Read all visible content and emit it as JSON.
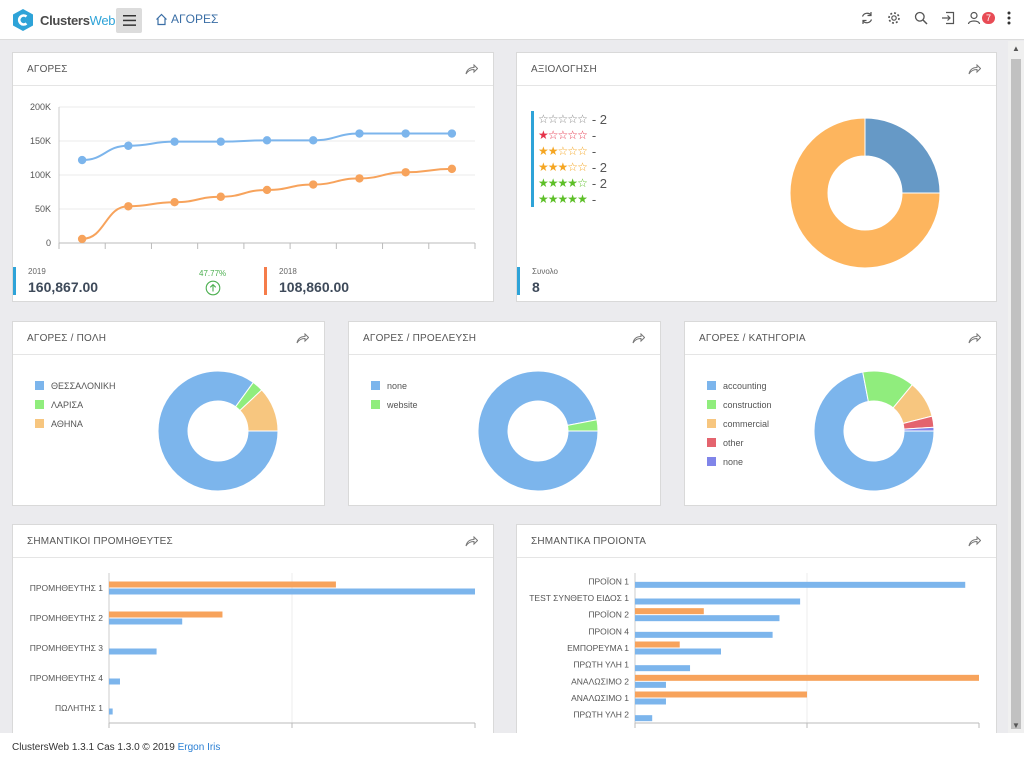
{
  "app": {
    "logo_name": "Clusters",
    "logo_suffix": "Web",
    "breadcrumb": "ΑΓΟΡΕΣ",
    "notification_count": "7"
  },
  "panels": {
    "sales": {
      "title": "ΑΓΟΡΕΣ"
    },
    "rating": {
      "title": "ΑΞΙΟΛΟΓΗΣΗ"
    },
    "city": {
      "title": "ΑΓΟΡΕΣ / ΠΟΛΗ"
    },
    "origin": {
      "title": "ΑΓΟΡΕΣ / ΠΡΟΕΛΕΥΣΗ"
    },
    "category": {
      "title": "ΑΓΟΡΕΣ / ΚΑΤΗΓΟΡΙΑ"
    },
    "suppliers": {
      "title": "ΣΗΜΑΝΤΙΚΟΙ ΠΡΟΜΗΘΕΥΤΕΣ"
    },
    "products": {
      "title": "ΣΗΜΑΝΤΙΚΑ ΠΡΟΙΟΝΤΑ"
    }
  },
  "sales_stats": {
    "y2019_label": "2019",
    "y2019_value": "160,867.00",
    "change_pct": "47.77%",
    "y2018_label": "2018",
    "y2018_value": "108,860.00"
  },
  "rating_stats": {
    "rows": [
      {
        "stars": 0,
        "count": "- 2"
      },
      {
        "stars": 1,
        "count": "-"
      },
      {
        "stars": 2,
        "count": "-"
      },
      {
        "stars": 3,
        "count": "- 2"
      },
      {
        "stars": 4,
        "count": "- 2"
      },
      {
        "stars": 5,
        "count": "-"
      }
    ],
    "total_label": "Συνολο",
    "total_value": "8"
  },
  "colors": {
    "blue": "#7cb5ec",
    "orange": "#f7a35c",
    "green": "#90ed7d",
    "peach": "#f7c67f",
    "red": "#e4646e",
    "indigo": "#8085e9",
    "steel": "#6699c6",
    "amber": "#fdb55e",
    "accent": "#2ea3d8",
    "star_red": "#e5334a",
    "star_orange": "#f5a623",
    "star_green": "#5dbf28"
  },
  "chart_data": [
    {
      "type": "line",
      "x": [
        1,
        2,
        3,
        4,
        5,
        6,
        7,
        8,
        9
      ],
      "ylim": [
        0,
        200000
      ],
      "yticks": [
        "0",
        "50K",
        "100K",
        "150K",
        "200K"
      ],
      "grid": true,
      "series": [
        {
          "color": "#7cb5ec",
          "values": [
            122000,
            143000,
            149000,
            149000,
            151000,
            151000,
            161000,
            161000,
            161000
          ]
        },
        {
          "color": "#f7a35c",
          "values": [
            6000,
            54000,
            60000,
            68000,
            78000,
            86000,
            95000,
            104000,
            109000
          ]
        }
      ]
    },
    {
      "type": "pie",
      "donut": true,
      "slices": [
        {
          "value": 6,
          "color": "#fdb55e"
        },
        {
          "value": 2,
          "color": "#6699c6"
        }
      ]
    },
    {
      "type": "pie",
      "donut": true,
      "labels": [
        "ΘΕΣΣΑΛΟΝΙΚΗ",
        "ΛΑΡΙΣΑ",
        "ΑΘΗΝΑ"
      ],
      "values": [
        85,
        3,
        12
      ],
      "colors": [
        "#7cb5ec",
        "#90ed7d",
        "#f7c67f"
      ]
    },
    {
      "type": "pie",
      "donut": true,
      "labels": [
        "none",
        "website"
      ],
      "values": [
        97,
        3
      ],
      "colors": [
        "#7cb5ec",
        "#90ed7d"
      ]
    },
    {
      "type": "pie",
      "donut": true,
      "labels": [
        "accounting",
        "construction",
        "commercial",
        "other",
        "none"
      ],
      "values": [
        72,
        14,
        10,
        3,
        1
      ],
      "colors": [
        "#7cb5ec",
        "#90ed7d",
        "#f7c67f",
        "#e4646e",
        "#8085e9"
      ]
    },
    {
      "type": "bar",
      "orientation": "horizontal",
      "categories": [
        "ΠΡΟΜΗΘΕΥΤΗΣ 1",
        "ΠΡΟΜΗΘΕΥΤΗΣ 2",
        "ΠΡΟΜΗΘΕΥΤΗΣ 3",
        "ΠΡΟΜΗΘΕΥΤΗΣ 4",
        "ΠΩΛΗΤΗΣ 1"
      ],
      "xlim": [
        0,
        100
      ],
      "series": [
        {
          "color": "#f7a35c",
          "values": [
            62,
            31,
            0,
            0,
            0
          ]
        },
        {
          "color": "#7cb5ec",
          "values": [
            100,
            20,
            13,
            3,
            1
          ]
        }
      ]
    },
    {
      "type": "bar",
      "orientation": "horizontal",
      "categories": [
        "ΠΡΟΪΟΝ 1",
        "TEST ΣΥΝΘΕΤΟ ΕΙΔΟΣ 1",
        "ΠΡΟΪΟΝ 2",
        "ΠΡΟΙΟΝ 4",
        "ΕΜΠΟΡΕΥΜΑ 1",
        "ΠΡΩΤΗ ΥΛΗ 1",
        "ΑΝΑΛΩΣΙΜΟ 2",
        "ΑΝΑΛΩΣΙΜΟ 1",
        "ΠΡΩΤΗ ΥΛΗ 2"
      ],
      "xlim": [
        0,
        100
      ],
      "series": [
        {
          "color": "#f7a35c",
          "values": [
            0,
            0,
            20,
            0,
            13,
            0,
            100,
            50,
            0
          ]
        },
        {
          "color": "#7cb5ec",
          "values": [
            96,
            48,
            42,
            40,
            25,
            16,
            9,
            9,
            5
          ]
        }
      ]
    }
  ]
}
